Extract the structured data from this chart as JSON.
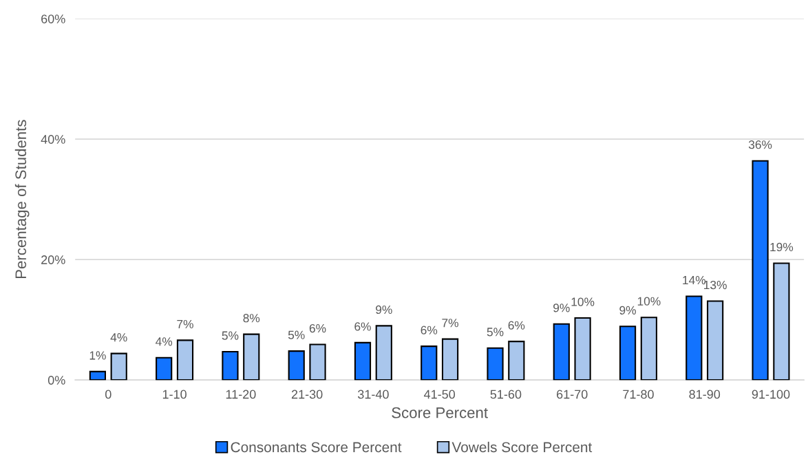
{
  "chart_data": {
    "type": "bar",
    "xlabel": "Score Percent",
    "ylabel": "Percentage of Students",
    "categories": [
      "0",
      "1-10",
      "11-20",
      "21-30",
      "31-40",
      "41-50",
      "51-60",
      "61-70",
      "71-80",
      "81-90",
      "91-100"
    ],
    "series": [
      {
        "name": "Consonants Score Percent",
        "color": "#1273ff",
        "values": [
          1.4,
          3.7,
          4.7,
          4.8,
          6.2,
          5.6,
          5.3,
          9.3,
          8.9,
          13.9,
          36.4
        ],
        "value_labels": [
          "1%",
          "4%",
          "5%",
          "5%",
          "6%",
          "6%",
          "5%",
          "9%",
          "9%",
          "14%",
          "36%"
        ]
      },
      {
        "name": "Vowels Score Percent",
        "color": "#a9c6ec",
        "values": [
          4.4,
          6.6,
          7.6,
          5.9,
          9.0,
          6.8,
          6.4,
          10.3,
          10.4,
          13.1,
          19.4
        ],
        "value_labels": [
          "4%",
          "7%",
          "8%",
          "6%",
          "9%",
          "7%",
          "6%",
          "10%",
          "10%",
          "13%",
          "19%"
        ]
      }
    ],
    "ylim": [
      0,
      60
    ],
    "yticks": [
      {
        "value": 0,
        "label": "0%"
      },
      {
        "value": 20,
        "label": "20%"
      },
      {
        "value": 40,
        "label": "40%"
      },
      {
        "value": 60,
        "label": "60%"
      }
    ],
    "grid": "y",
    "legend": "bottom"
  }
}
